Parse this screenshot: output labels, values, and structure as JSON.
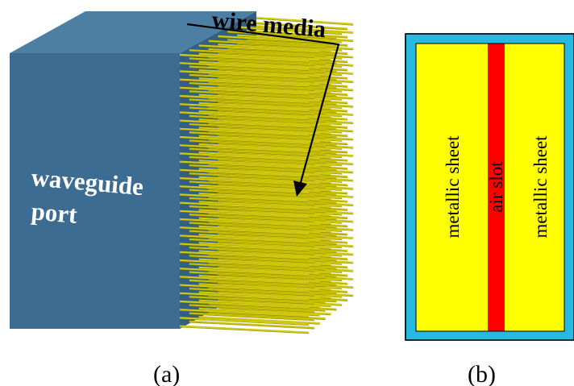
{
  "figure_a": {
    "port_label_line1": "waveguide",
    "port_label_line2": "port",
    "wire_label": "wire media",
    "caption": "(a)",
    "colors": {
      "box_front": "#3c6c92",
      "box_top": "#4d7fa5",
      "box_side": "#335f82",
      "wire": "#c8c000",
      "wire_edge": "#8c8600",
      "text": "#ffffff"
    }
  },
  "figure_b": {
    "left_label": "metallic sheet",
    "slot_label": "air slot",
    "right_label": "metallic sheet",
    "caption": "(b)",
    "colors": {
      "border": "#28b8e0",
      "sheet": "#ffff00",
      "slot": "#ff0000",
      "outline": "#000000"
    }
  }
}
